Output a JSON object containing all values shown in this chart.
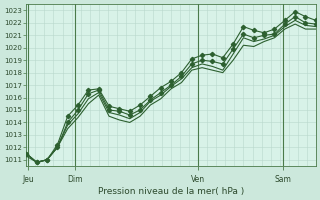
{
  "xlabel": "Pression niveau de la mer( hPa )",
  "bg_color": "#cce8dc",
  "plot_bg": "#d8f2e8",
  "grid_color": "#b8d8cc",
  "line_color": "#2d6030",
  "vline_color": "#4a7a4a",
  "ylim": [
    1010.5,
    1023.5
  ],
  "xlim": [
    0,
    9.0
  ],
  "yticks": [
    1011,
    1012,
    1013,
    1014,
    1015,
    1016,
    1017,
    1018,
    1019,
    1020,
    1021,
    1022,
    1023
  ],
  "day_positions": [
    0.5,
    2.0,
    5.0,
    7.5
  ],
  "vline_positions": [
    1.2,
    2.8,
    6.0
  ],
  "day_labels": [
    "Jeu",
    "Dim",
    "Ven",
    "Sam"
  ],
  "series1": [
    1011.5,
    1010.8,
    1011.0,
    1012.2,
    1014.5,
    1015.4,
    1016.6,
    1016.7,
    1015.3,
    1015.1,
    1014.9,
    1015.4,
    1016.1,
    1016.8,
    1017.3,
    1018.0,
    1019.1,
    1019.4,
    1019.5,
    1019.2,
    1020.3,
    1021.7,
    1021.4,
    1021.2,
    1021.5,
    1022.2,
    1022.9,
    1022.5,
    1022.2
  ],
  "series2": [
    1011.5,
    1010.8,
    1011.0,
    1012.0,
    1014.0,
    1015.0,
    1016.3,
    1016.6,
    1015.0,
    1014.9,
    1014.6,
    1015.0,
    1015.8,
    1016.4,
    1017.0,
    1017.7,
    1018.7,
    1019.0,
    1018.9,
    1018.7,
    1019.9,
    1021.1,
    1020.8,
    1021.0,
    1021.1,
    1021.9,
    1022.5,
    1022.0,
    1021.9
  ],
  "series3": [
    1011.5,
    1010.8,
    1011.0,
    1012.0,
    1013.8,
    1014.7,
    1015.9,
    1016.4,
    1014.8,
    1014.6,
    1014.3,
    1014.8,
    1015.7,
    1016.2,
    1016.9,
    1017.5,
    1018.4,
    1018.7,
    1018.5,
    1018.2,
    1019.5,
    1020.8,
    1020.5,
    1020.7,
    1021.0,
    1021.7,
    1022.2,
    1021.8,
    1021.7
  ],
  "series4": [
    1011.3,
    1010.8,
    1011.0,
    1012.0,
    1013.5,
    1014.4,
    1015.5,
    1016.2,
    1014.5,
    1014.2,
    1014.0,
    1014.5,
    1015.4,
    1015.9,
    1016.7,
    1017.2,
    1018.2,
    1018.4,
    1018.2,
    1018.0,
    1019.0,
    1020.2,
    1020.1,
    1020.5,
    1020.8,
    1021.5,
    1021.9,
    1021.5,
    1021.5
  ],
  "n_points": 29,
  "marker": "D",
  "markersize": 2.2
}
